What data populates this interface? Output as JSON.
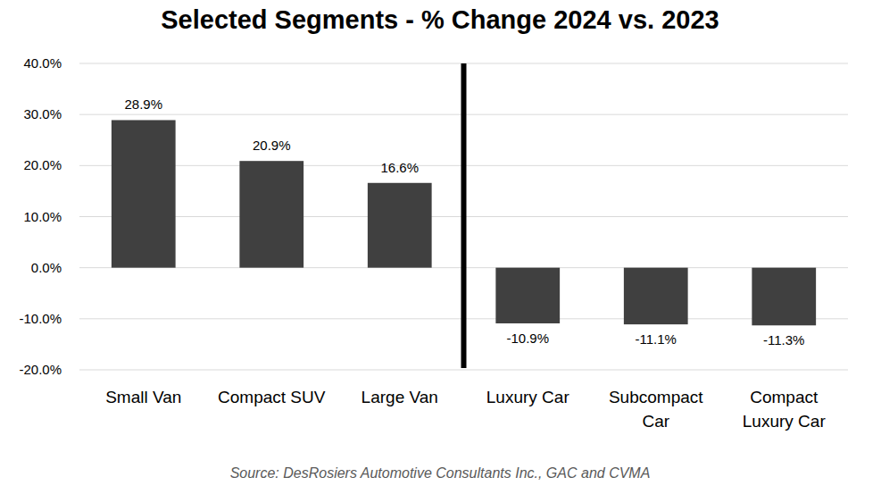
{
  "chart_data": {
    "type": "bar",
    "title": "Selected Segments - % Change 2024 vs. 2023",
    "categories": [
      "Small Van",
      "Compact SUV",
      "Large Van",
      "Luxury Car",
      "Subcompact Car",
      "Compact Luxury Car"
    ],
    "values": [
      28.9,
      20.9,
      16.6,
      -10.9,
      -11.1,
      -11.3
    ],
    "value_labels": [
      "28.9%",
      "20.9%",
      "16.6%",
      "-10.9%",
      "-11.1%",
      "-11.3%"
    ],
    "color": "#404040",
    "ylim": [
      -20,
      40
    ],
    "yticks": [
      {
        "value": -20,
        "label": "-20.0%"
      },
      {
        "value": -10,
        "label": "-10.0%"
      },
      {
        "value": 0,
        "label": "0.0%"
      },
      {
        "value": 10,
        "label": "10.0%"
      },
      {
        "value": 20,
        "label": "20.0%"
      },
      {
        "value": 30,
        "label": "30.0%"
      },
      {
        "value": 40,
        "label": "40.0%"
      }
    ],
    "grid": true,
    "data_labels": true,
    "source": "Source: DesRosiers Automotive Consultants Inc., GAC and CVMA"
  }
}
